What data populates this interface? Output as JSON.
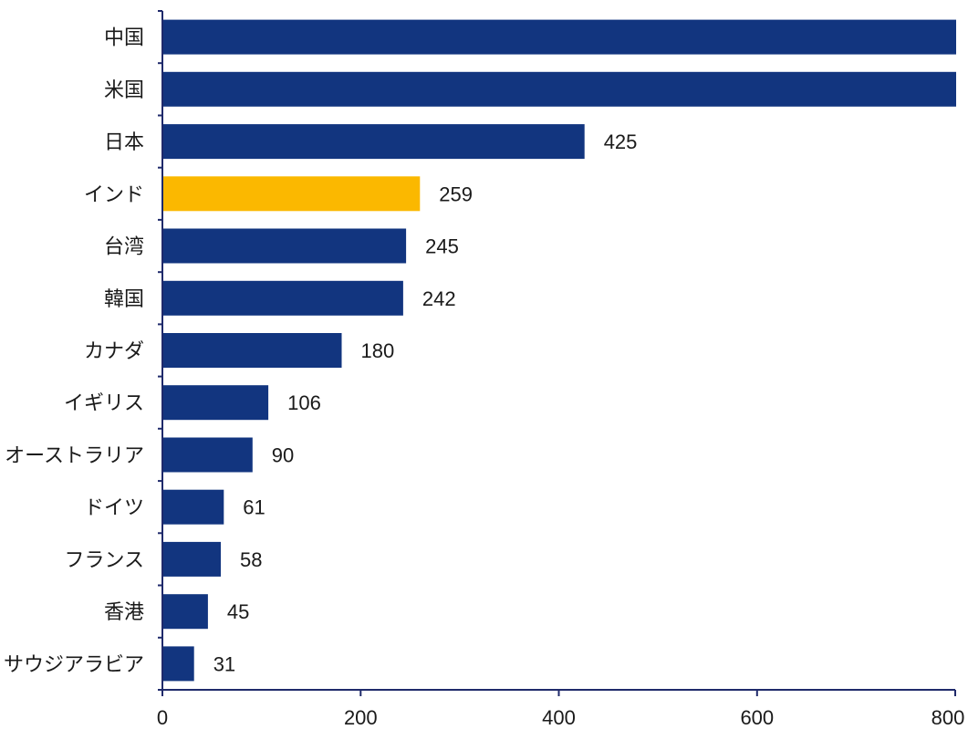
{
  "chart_data": {
    "type": "bar",
    "orientation": "horizontal",
    "categories": [
      "中国",
      "米国",
      "日本",
      "インド",
      "台湾",
      "韓国",
      "カナダ",
      "イギリス",
      "オーストラリア",
      "ドイツ",
      "フランス",
      "香港",
      "サウジアラビア"
    ],
    "values": [
      800,
      800,
      425,
      259,
      245,
      242,
      180,
      106,
      90,
      61,
      58,
      45,
      31
    ],
    "value_labels": [
      "",
      "",
      "425",
      "259",
      "245",
      "242",
      "180",
      "106",
      "90",
      "61",
      "58",
      "45",
      "31"
    ],
    "highlight_category": "インド",
    "colors": {
      "bar": "#12357f",
      "highlight": "#fbb800",
      "axis": "#1f2a6b"
    },
    "xlim": [
      0,
      800
    ],
    "xticks": [
      0,
      200,
      400,
      600,
      800
    ],
    "xtick_labels": [
      "0",
      "200",
      "400",
      "600",
      "800"
    ],
    "grid": false,
    "legend": "none"
  }
}
